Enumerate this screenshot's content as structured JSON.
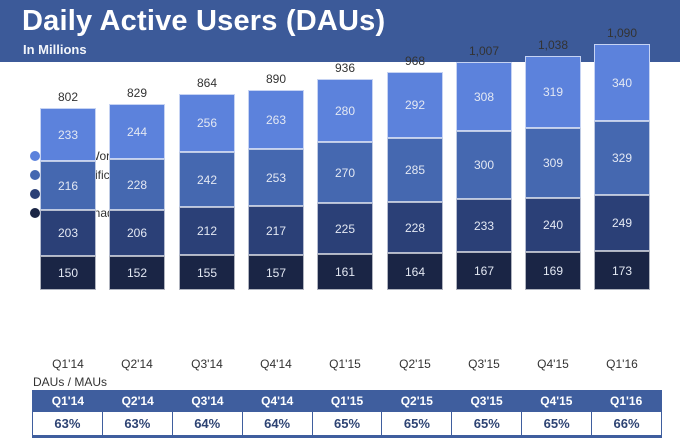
{
  "header": {
    "title": "Daily Active Users (DAUs)",
    "subtitle": "In Millions"
  },
  "colors": {
    "header_bg": "#3c5a99",
    "axis_line": "#23283a",
    "table_blue": "#3f5e9e",
    "table_value_text": "#2d4373"
  },
  "legend": {
    "items": [
      {
        "label": "Rest of World",
        "color": "#5c82dc"
      },
      {
        "label": "Asia-Pacific",
        "color": "#4568b0"
      },
      {
        "label": "Europe",
        "color": "#2b4077"
      },
      {
        "label": "US & Canada",
        "color": "#1a2545"
      }
    ]
  },
  "chart_data": {
    "type": "bar",
    "stacked": true,
    "title": "Daily Active Users (DAUs)",
    "subtitle_unit": "In Millions",
    "categories": [
      "Q1'14",
      "Q2'14",
      "Q3'14",
      "Q4'14",
      "Q1'15",
      "Q2'15",
      "Q3'15",
      "Q4'15",
      "Q1'16"
    ],
    "total_labels": [
      "802",
      "829",
      "864",
      "890",
      "936",
      "968",
      "1,007",
      "1,038",
      "1,090"
    ],
    "series_bottom_to_top": [
      {
        "name": "US & Canada",
        "color": "#1a2545",
        "values": [
          150,
          152,
          155,
          157,
          161,
          164,
          167,
          169,
          173
        ]
      },
      {
        "name": "Europe",
        "color": "#2b4077",
        "values": [
          203,
          206,
          212,
          217,
          225,
          228,
          233,
          240,
          249
        ]
      },
      {
        "name": "Asia-Pacific",
        "color": "#4568b0",
        "values": [
          216,
          228,
          242,
          253,
          270,
          285,
          300,
          309,
          329
        ]
      },
      {
        "name": "Rest of World",
        "color": "#5c82dc",
        "values": [
          233,
          244,
          256,
          263,
          280,
          292,
          308,
          319,
          340
        ]
      }
    ],
    "legend_position": "top-left",
    "grid": false,
    "ylim": [
      0,
      1090
    ]
  },
  "table": {
    "label": "DAUs / MAUs",
    "columns": [
      "Q1'14",
      "Q2'14",
      "Q3'14",
      "Q4'14",
      "Q1'15",
      "Q2'15",
      "Q3'15",
      "Q4'15",
      "Q1'16"
    ],
    "values": [
      "63%",
      "63%",
      "64%",
      "64%",
      "65%",
      "65%",
      "65%",
      "65%",
      "66%"
    ]
  }
}
